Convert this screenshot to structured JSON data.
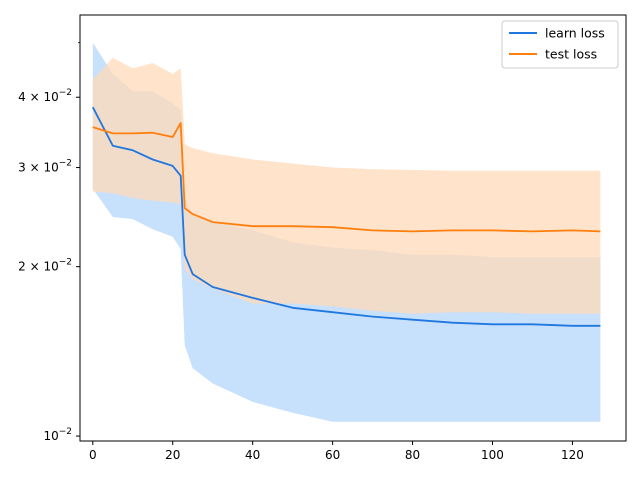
{
  "chart_data": {
    "type": "line",
    "title": "",
    "xlabel": "",
    "ylabel": "",
    "y_scale": "log",
    "xlim": [
      -3.2,
      133.4
    ],
    "ylim": [
      0.0098,
      0.056
    ],
    "grid": false,
    "legend_position": "top-right",
    "x_ticks": [
      0,
      20,
      40,
      60,
      80,
      100,
      120
    ],
    "y_ticks": [
      {
        "value": 0.01,
        "label": "10⁻²",
        "mantissa": "",
        "exp": "−2"
      },
      {
        "value": 0.02,
        "label": "2 × 10⁻²",
        "mantissa": "2",
        "exp": "−2"
      },
      {
        "value": 0.03,
        "label": "3 × 10⁻²",
        "mantissa": "3",
        "exp": "−2"
      },
      {
        "value": 0.04,
        "label": "4 × 10⁻²",
        "mantissa": "4",
        "exp": "−2"
      }
    ],
    "y_minor_ticks": [
      0.05,
      0.06
    ],
    "x_shared": [
      0,
      5,
      10,
      15,
      20,
      22,
      23,
      25,
      30,
      40,
      50,
      60,
      70,
      80,
      90,
      100,
      110,
      120,
      127
    ],
    "series": [
      {
        "name": "learn loss",
        "color": "#1f77e0",
        "band_color": "#c7e0fb",
        "mean": [
          0.0384,
          0.0328,
          0.0322,
          0.031,
          0.0302,
          0.029,
          0.021,
          0.0194,
          0.0184,
          0.0176,
          0.0169,
          0.0166,
          0.0163,
          0.0161,
          0.0159,
          0.0158,
          0.0158,
          0.0157,
          0.0157
        ],
        "lower": [
          0.0275,
          0.0245,
          0.0243,
          0.0233,
          0.0226,
          0.0215,
          0.0145,
          0.0132,
          0.0124,
          0.0115,
          0.011,
          0.0106,
          0.0106,
          0.0106,
          0.0106,
          0.0106,
          0.0106,
          0.0106,
          0.0106
        ],
        "upper": [
          0.05,
          0.044,
          0.041,
          0.041,
          0.039,
          0.038,
          0.0265,
          0.0246,
          0.024,
          0.0232,
          0.0221,
          0.0216,
          0.0214,
          0.021,
          0.021,
          0.0208,
          0.0208,
          0.0208,
          0.0208
        ]
      },
      {
        "name": "test loss",
        "color": "#ff7f0e",
        "band_color": "#ffd9b8",
        "mean": [
          0.0354,
          0.0345,
          0.0345,
          0.0346,
          0.034,
          0.036,
          0.0254,
          0.0248,
          0.024,
          0.0236,
          0.0236,
          0.0235,
          0.0232,
          0.0231,
          0.0232,
          0.0232,
          0.0231,
          0.0232,
          0.0231
        ],
        "lower": [
          0.0272,
          0.027,
          0.0265,
          0.0262,
          0.026,
          0.0258,
          0.0198,
          0.019,
          0.0183,
          0.0172,
          0.0172,
          0.017,
          0.0167,
          0.0165,
          0.0166,
          0.0166,
          0.0165,
          0.0165,
          0.0165
        ],
        "upper": [
          0.043,
          0.047,
          0.045,
          0.046,
          0.044,
          0.045,
          0.033,
          0.0325,
          0.0318,
          0.031,
          0.0305,
          0.03,
          0.0298,
          0.0297,
          0.0296,
          0.0296,
          0.0296,
          0.0296,
          0.0296
        ]
      }
    ]
  }
}
